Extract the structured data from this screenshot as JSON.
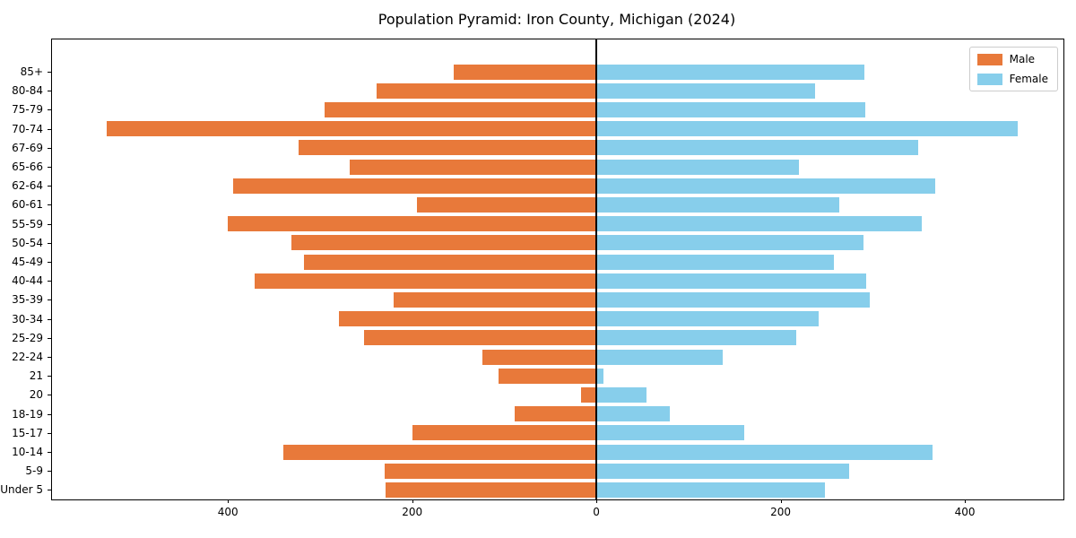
{
  "title": "Population Pyramid: Iron County, Michigan (2024)",
  "legend": {
    "male_label": "Male",
    "female_label": "Female"
  },
  "colors": {
    "male": "#e8793a",
    "female": "#87ceeb",
    "zero_line": "#000000",
    "axis_frame": "#000000",
    "legend_border": "#cccccc",
    "background": "#ffffff"
  },
  "chart_data": {
    "type": "bar",
    "subtype": "population-pyramid-horizontal",
    "title": "Population Pyramid: Iron County, Michigan (2024)",
    "categories": [
      "85+",
      "80-84",
      "75-79",
      "70-74",
      "67-69",
      "65-66",
      "62-64",
      "60-61",
      "55-59",
      "50-54",
      "45-49",
      "40-44",
      "35-39",
      "30-34",
      "25-29",
      "22-24",
      "21",
      "20",
      "18-19",
      "15-17",
      "10-14",
      "5-9",
      "Under 5"
    ],
    "series": [
      {
        "name": "Male",
        "side": "left",
        "color": "#e8793a",
        "values": [
          155,
          239,
          295,
          532,
          323,
          268,
          394,
          195,
          400,
          331,
          318,
          371,
          220,
          280,
          252,
          124,
          106,
          17,
          89,
          200,
          340,
          230,
          229
        ]
      },
      {
        "name": "Female",
        "side": "right",
        "color": "#87ceeb",
        "values": [
          291,
          237,
          292,
          457,
          349,
          220,
          368,
          264,
          353,
          290,
          258,
          293,
          297,
          241,
          217,
          137,
          8,
          54,
          80,
          161,
          365,
          274,
          248
        ]
      }
    ],
    "xlabel": "",
    "ylabel": "",
    "xlim": [
      -591,
      507
    ],
    "x_ticks": {
      "values": [
        -400,
        -200,
        0,
        200,
        400
      ],
      "labels": [
        "400",
        "200",
        "0",
        "200",
        "400"
      ]
    },
    "grid": false,
    "legend_entries": [
      "Male",
      "Female"
    ],
    "legend_position": "upper right",
    "zero_axvline": true
  }
}
